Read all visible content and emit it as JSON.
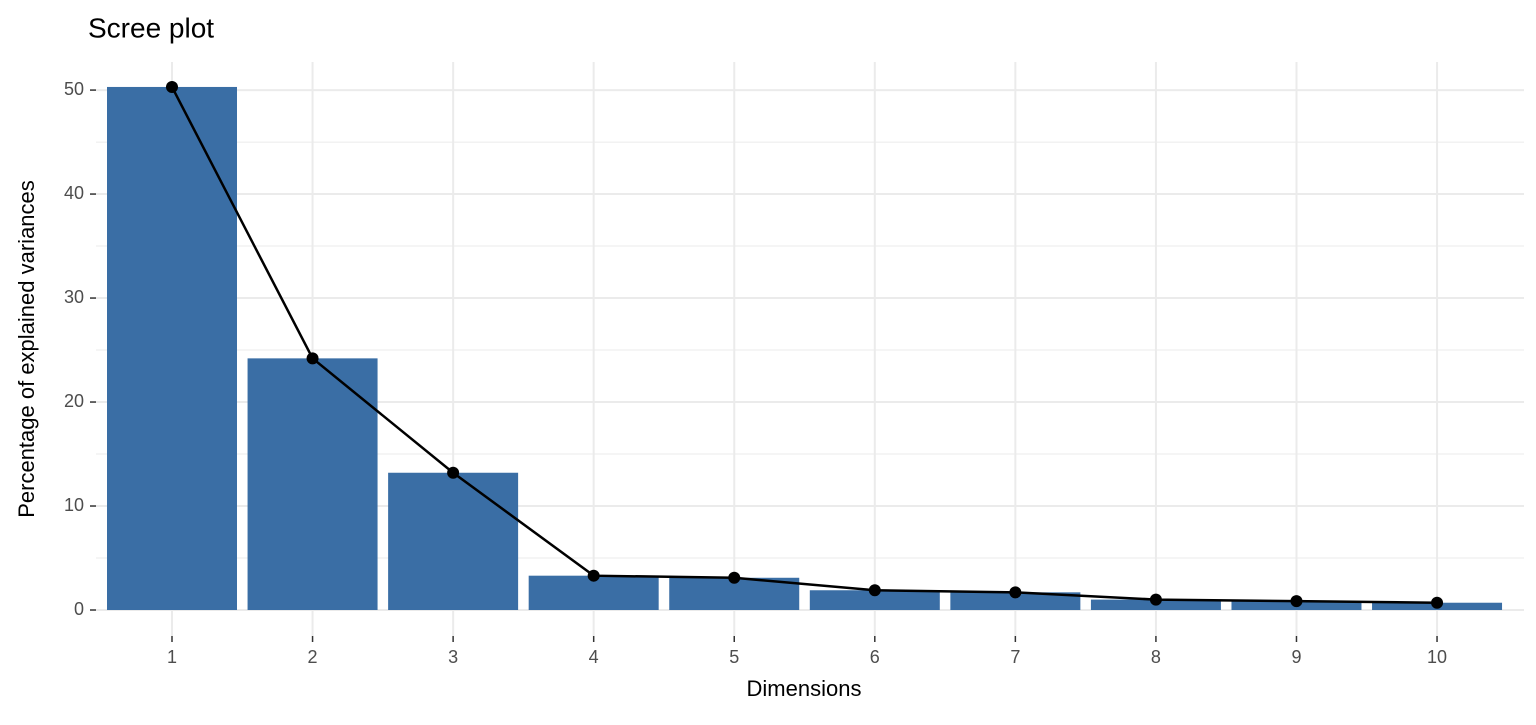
{
  "chart_data": {
    "type": "bar",
    "title": "Scree plot",
    "x_label": "Dimensions",
    "y_label": "Percentage of explained variances",
    "categories": [
      "1",
      "2",
      "3",
      "4",
      "5",
      "6",
      "7",
      "8",
      "9",
      "10"
    ],
    "values": [
      50.3,
      24.2,
      13.2,
      3.3,
      3.1,
      1.9,
      1.7,
      1.0,
      0.85,
      0.7
    ],
    "color": "#3a6ea5",
    "line_color": "#000000",
    "ylim": [
      -2.5,
      52.7
    ],
    "yticks": [
      0,
      10,
      20,
      30,
      40,
      50
    ],
    "grid": true
  }
}
